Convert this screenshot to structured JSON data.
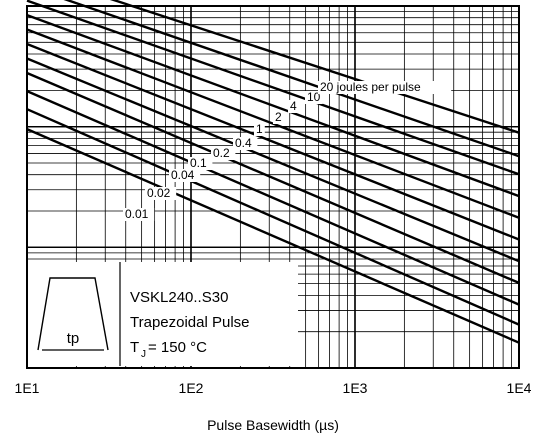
{
  "chart_data": {
    "type": "line",
    "xscale": "log",
    "xlim": [
      10,
      10000
    ],
    "xlabel": "Pulse Basewidth (µs)",
    "ylabel": "",
    "x_tick_labels": [
      "1E1",
      "1E2",
      "1E3",
      "1E4"
    ],
    "grid": true,
    "series": [
      {
        "name": "0.01",
        "label": "0.01",
        "x": [
          10,
          10000
        ],
        "y": [
          0.66,
          0.07
        ]
      },
      {
        "name": "0.02",
        "label": "0.02",
        "x": [
          10,
          10000
        ],
        "y": [
          0.715,
          0.12
        ]
      },
      {
        "name": "0.04",
        "label": "0.04",
        "x": [
          10,
          10000
        ],
        "y": [
          0.765,
          0.175
        ]
      },
      {
        "name": "0.1",
        "label": "0.1",
        "x": [
          10,
          10000
        ],
        "y": [
          0.815,
          0.235
        ]
      },
      {
        "name": "0.2",
        "label": "0.2",
        "x": [
          10,
          10000
        ],
        "y": [
          0.855,
          0.295
        ]
      },
      {
        "name": "0.4",
        "label": "0.4",
        "x": [
          10,
          10000
        ],
        "y": [
          0.895,
          0.355
        ]
      },
      {
        "name": "1",
        "label": "1",
        "x": [
          10,
          10000
        ],
        "y": [
          0.935,
          0.415
        ]
      },
      {
        "name": "2",
        "label": "2",
        "x": [
          10,
          10000
        ],
        "y": [
          0.975,
          0.475
        ]
      },
      {
        "name": "4",
        "label": "4",
        "x": [
          10,
          10000
        ],
        "y": [
          1.015,
          0.535
        ]
      },
      {
        "name": "10",
        "label": "10",
        "x": [
          10,
          10000
        ],
        "y": [
          1.055,
          0.585
        ]
      },
      {
        "name": "20 joules per pulse",
        "label": "20 joules per pulse",
        "x": [
          10,
          10000
        ],
        "y": [
          1.095,
          0.65
        ]
      }
    ],
    "legend": {
      "line1": "VSKL240..S30",
      "line2": "Trapezoidal Pulse",
      "line3_prefix": "T",
      "line3_sub": "J",
      "line3_suffix": "= 150 °C",
      "inset_label": "tp"
    }
  }
}
